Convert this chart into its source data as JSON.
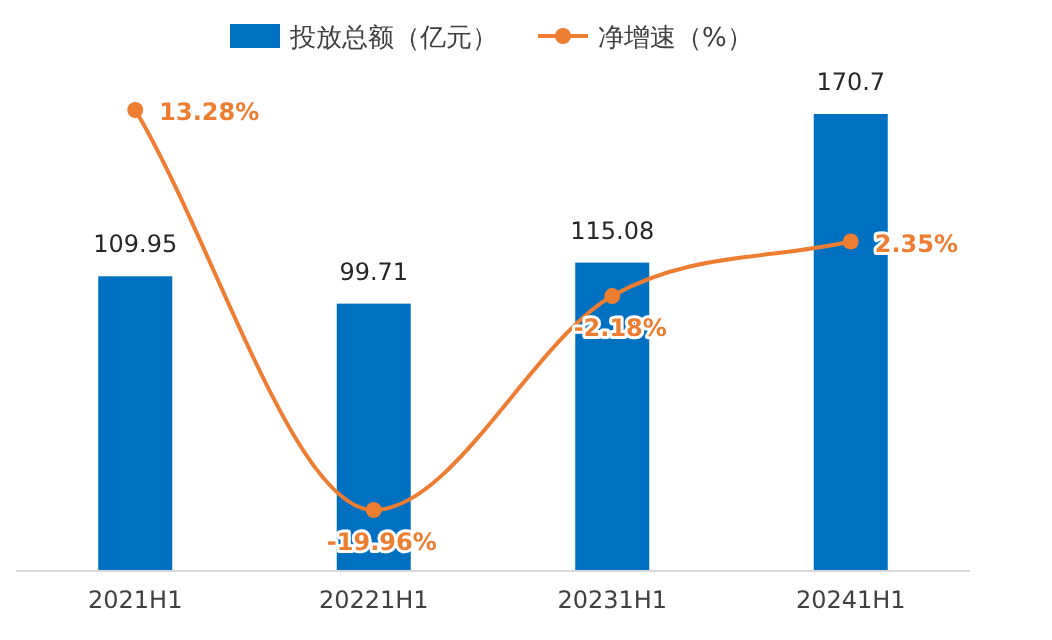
{
  "chart_data": {
    "type": "bar",
    "categories": [
      "2021H1",
      "20221H1",
      "20231H1",
      "20241H1"
    ],
    "legend": "top",
    "series": [
      {
        "name": "投放总额（亿元）",
        "color": "#0070c0",
        "values": [
          109.95,
          99.71,
          115.08,
          170.7
        ],
        "value_labels": [
          "109.95",
          "99.71",
          "115.08",
          "170.7"
        ]
      },
      {
        "name": "净增速（%）",
        "type": "line",
        "axis": "y2",
        "color": "#ed7d31",
        "marker": "circle",
        "values": [
          13.28,
          -19.96,
          -2.18,
          2.35
        ],
        "value_labels": [
          "13.28%",
          "-19.96%",
          "-2.18%",
          "2.35%"
        ]
      }
    ]
  }
}
